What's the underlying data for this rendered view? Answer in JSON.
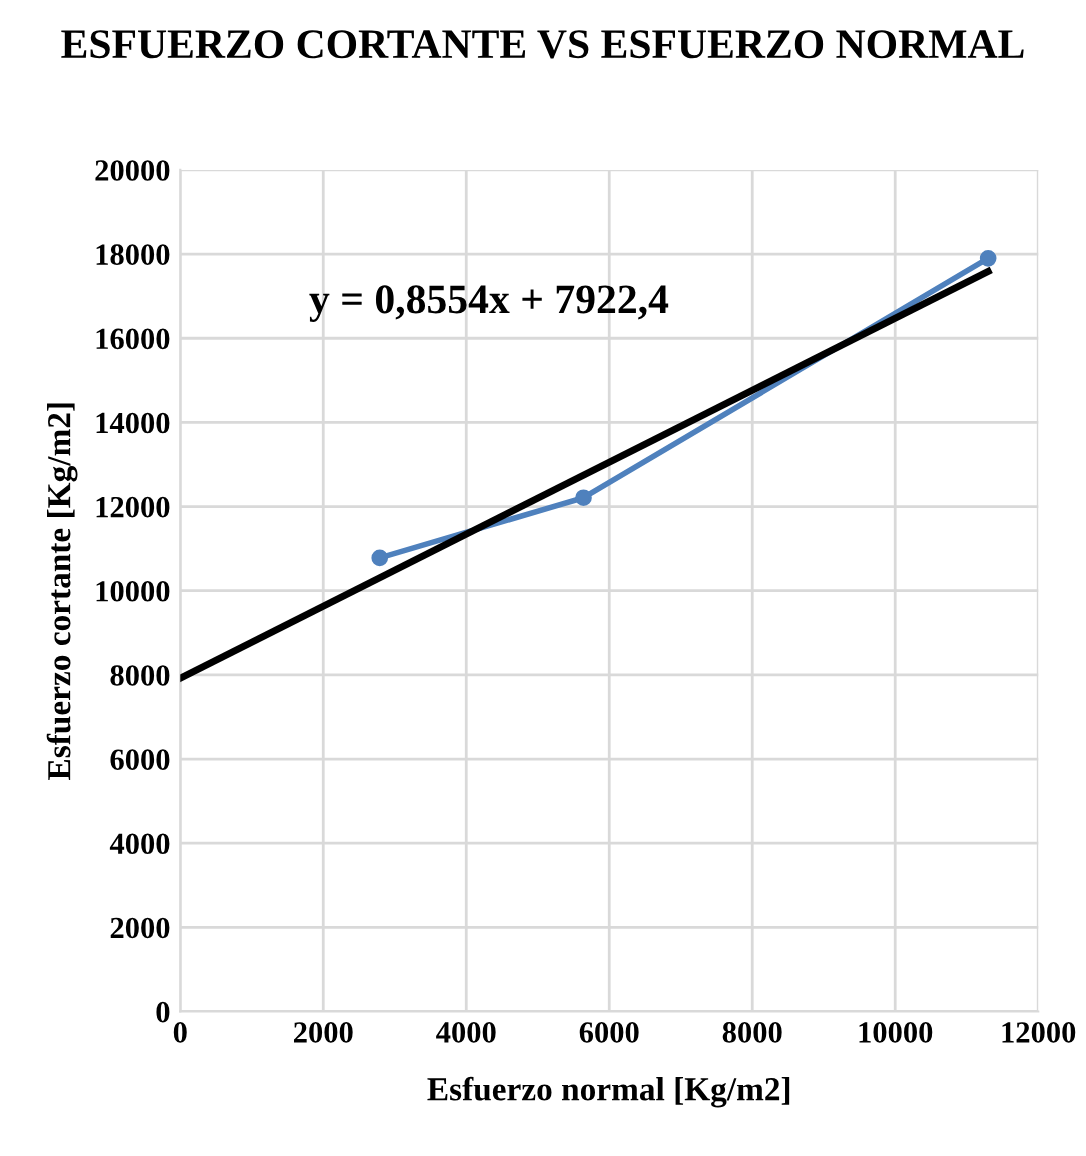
{
  "chart_data": {
    "type": "line",
    "title": "ESFUERZO CORTANTE VS ESFUERZO NORMAL",
    "xlabel": "Esfuerzo normal [Kg/m2]",
    "ylabel": "Esfuerzo cortante [Kg/m2]",
    "series": [
      {
        "color": "#4f81bd",
        "x": [
          2790,
          5640,
          11300
        ],
        "values": [
          10780,
          12210,
          17900
        ],
        "marker": "circle"
      },
      {
        "type": "line",
        "color": "#000000",
        "x": [
          0,
          11300
        ],
        "values": [
          7922.4,
          17588
        ]
      }
    ],
    "annotations": [
      "y = 0,8554x + 7922,4"
    ],
    "xlim": [
      0,
      12000
    ],
    "xticks": [
      0,
      2000,
      4000,
      6000,
      8000,
      10000,
      12000
    ],
    "ylim": [
      0,
      20000
    ],
    "yticks": [
      0,
      2000,
      4000,
      6000,
      8000,
      10000,
      12000,
      14000,
      16000,
      18000,
      20000
    ],
    "grid": true
  }
}
